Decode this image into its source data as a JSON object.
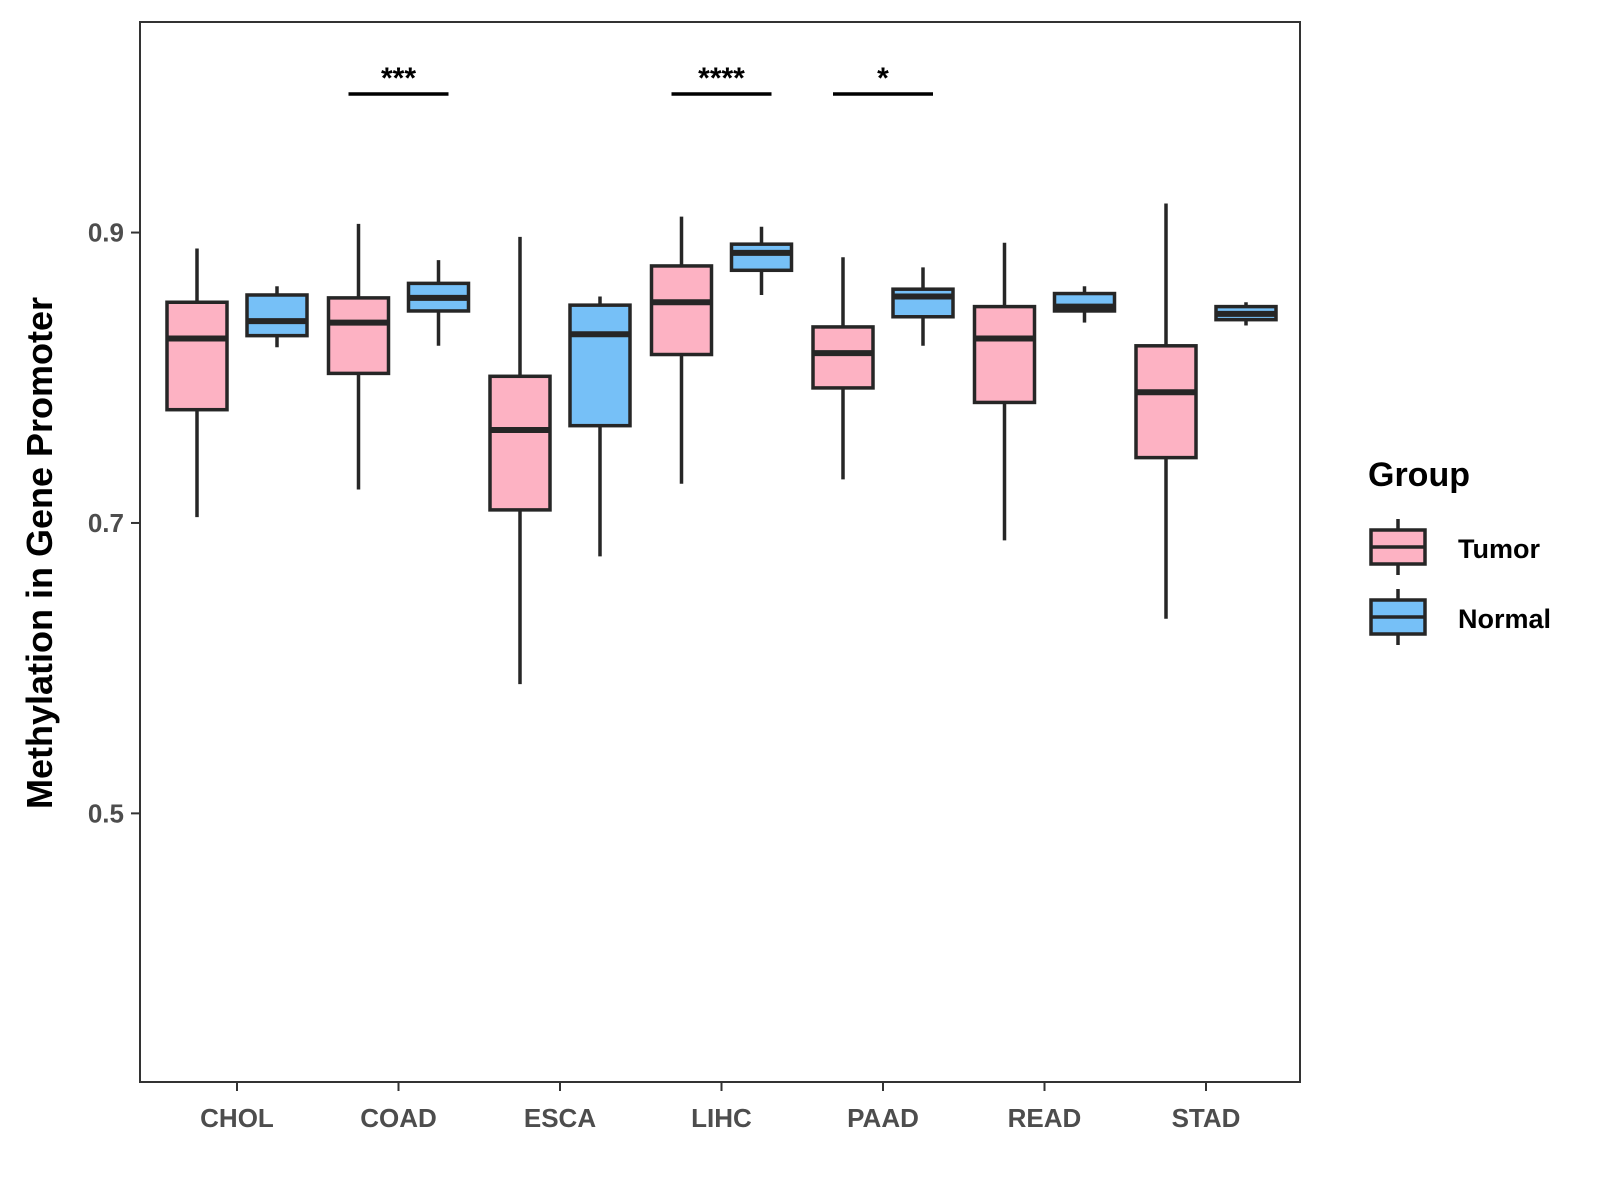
{
  "chart_data": {
    "type": "boxplot",
    "title": "",
    "xlabel": "",
    "ylabel": "Methylation in Gene Promoter",
    "ylim": [
      0.315,
      1.045
    ],
    "yticks": [
      0.5,
      0.7,
      0.9
    ],
    "ytick_labels": [
      "0.5",
      "0.7",
      "0.9"
    ],
    "grid": false,
    "categories": [
      "CHOL",
      "COAD",
      "ESCA",
      "LIHC",
      "PAAD",
      "READ",
      "STAD"
    ],
    "legend": {
      "title": "Group",
      "position": "right",
      "entries": [
        "Tumor",
        "Normal"
      ]
    },
    "colors": {
      "Tumor": "#fdb2c3",
      "Normal": "#76c0f7",
      "outline": "#262626"
    },
    "series": [
      {
        "name": "Tumor",
        "boxes": [
          {
            "category": "CHOL",
            "min": 0.704,
            "q1": 0.778,
            "median": 0.827,
            "q3": 0.852,
            "max": 0.889
          },
          {
            "category": "COAD",
            "min": 0.723,
            "q1": 0.803,
            "median": 0.838,
            "q3": 0.855,
            "max": 0.906
          },
          {
            "category": "ESCA",
            "min": 0.589,
            "q1": 0.709,
            "median": 0.764,
            "q3": 0.801,
            "max": 0.897
          },
          {
            "category": "LIHC",
            "min": 0.727,
            "q1": 0.816,
            "median": 0.852,
            "q3": 0.877,
            "max": 0.911
          },
          {
            "category": "PAAD",
            "min": 0.73,
            "q1": 0.793,
            "median": 0.817,
            "q3": 0.835,
            "max": 0.883
          },
          {
            "category": "READ",
            "min": 0.688,
            "q1": 0.783,
            "median": 0.827,
            "q3": 0.849,
            "max": 0.893
          },
          {
            "category": "STAD",
            "min": 0.634,
            "q1": 0.745,
            "median": 0.79,
            "q3": 0.822,
            "max": 0.92
          }
        ]
      },
      {
        "name": "Normal",
        "boxes": [
          {
            "category": "CHOL",
            "min": 0.821,
            "q1": 0.829,
            "median": 0.839,
            "q3": 0.857,
            "max": 0.863
          },
          {
            "category": "COAD",
            "min": 0.822,
            "q1": 0.846,
            "median": 0.855,
            "q3": 0.865,
            "max": 0.881
          },
          {
            "category": "ESCA",
            "min": 0.677,
            "q1": 0.767,
            "median": 0.83,
            "q3": 0.85,
            "max": 0.856
          },
          {
            "category": "LIHC",
            "min": 0.857,
            "q1": 0.874,
            "median": 0.886,
            "q3": 0.892,
            "max": 0.904
          },
          {
            "category": "PAAD",
            "min": 0.822,
            "q1": 0.842,
            "median": 0.856,
            "q3": 0.861,
            "max": 0.876
          },
          {
            "category": "READ",
            "min": 0.838,
            "q1": 0.846,
            "median": 0.849,
            "q3": 0.858,
            "max": 0.863
          },
          {
            "category": "STAD",
            "min": 0.836,
            "q1": 0.84,
            "median": 0.844,
            "q3": 0.849,
            "max": 0.852
          }
        ]
      }
    ],
    "significance": [
      {
        "category": "COAD",
        "label": "***"
      },
      {
        "category": "LIHC",
        "label": "****"
      },
      {
        "category": "PAAD",
        "label": "*"
      }
    ]
  }
}
